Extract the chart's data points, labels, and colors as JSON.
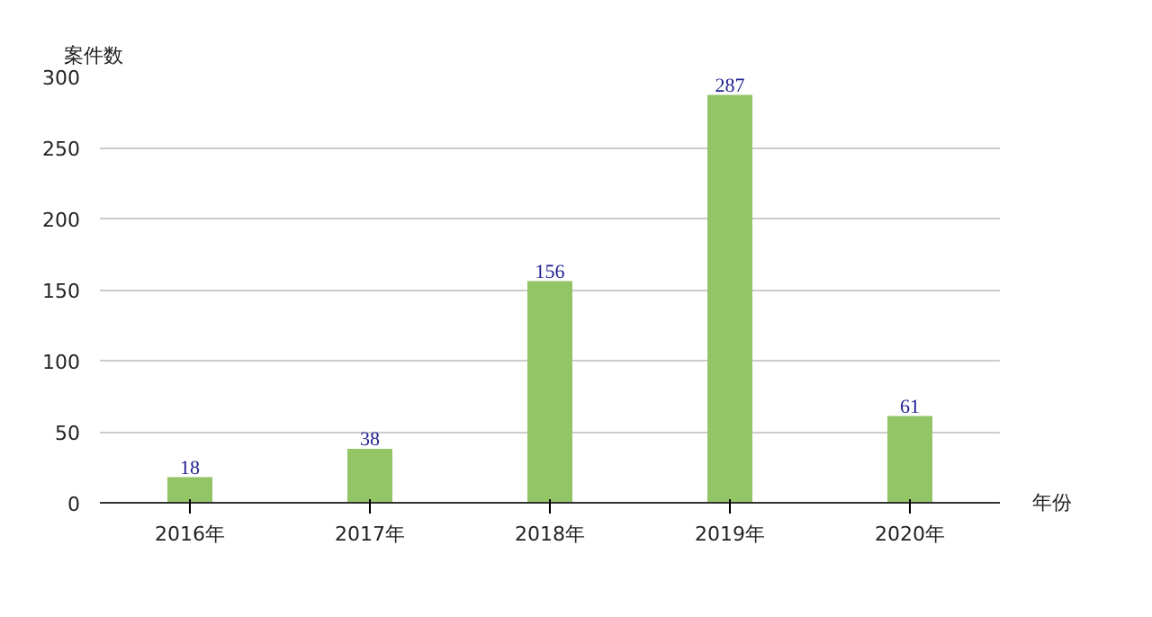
{
  "chart_data": {
    "type": "bar",
    "xlabel": "年份",
    "ylabel": "案件数",
    "categories": [
      "2016年",
      "2017年",
      "2018年",
      "2019年",
      "2020年"
    ],
    "values": [
      18,
      38,
      156,
      287,
      61
    ],
    "color": "#93c465",
    "ylim": [
      0,
      300
    ],
    "yticks": [
      0,
      50,
      100,
      150,
      200,
      250,
      300
    ],
    "grid": "y",
    "data_labels": true
  }
}
